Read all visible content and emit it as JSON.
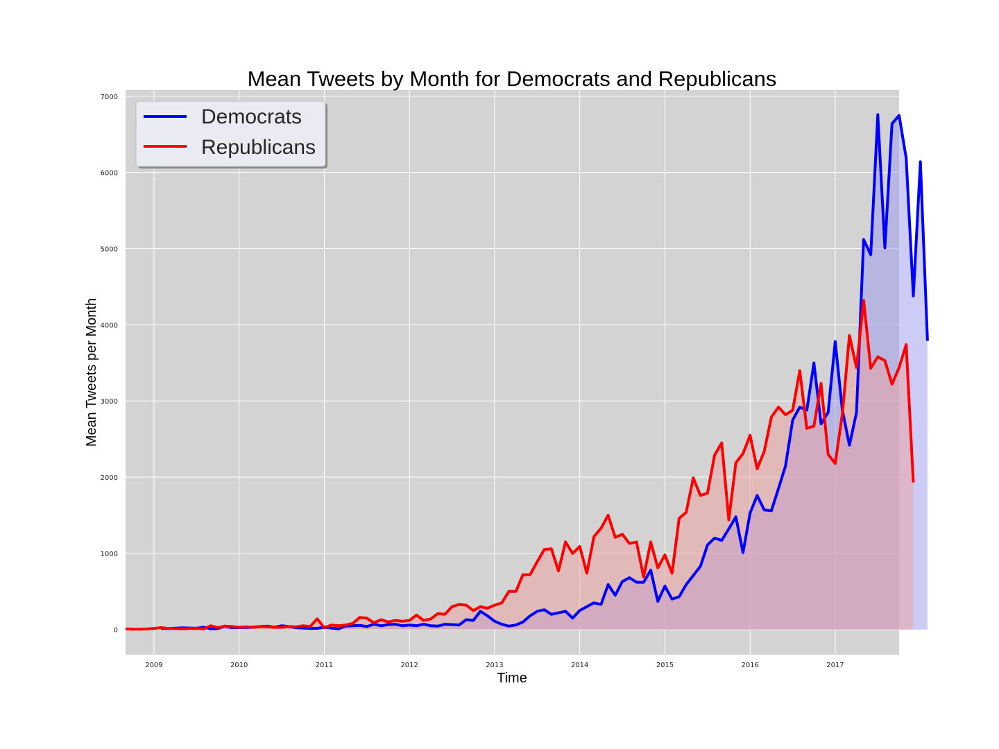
{
  "chart_data": {
    "type": "line",
    "title": "Mean Tweets by Month for Democrats and Republicans",
    "xlabel": "Time",
    "ylabel": "Mean Tweets per Month",
    "xlim": [
      "2008-09",
      "2017-10"
    ],
    "ylim": [
      -330,
      7080
    ],
    "x_ticks": [
      "2009",
      "2010",
      "2011",
      "2012",
      "2013",
      "2014",
      "2015",
      "2016",
      "2017"
    ],
    "y_ticks": [
      0,
      1000,
      2000,
      3000,
      4000,
      5000,
      6000,
      7000
    ],
    "grid": true,
    "legend_placement": "upper-left",
    "background": "#d3d3d3",
    "series": [
      {
        "name": "Democrats",
        "color": "#0000ff",
        "fill_color": "#9999ee",
        "x_start": "2009-02",
        "values": [
          15,
          12,
          18,
          22,
          20,
          17,
          30,
          10,
          12,
          45,
          25,
          28,
          28,
          32,
          40,
          45,
          30,
          50,
          40,
          25,
          20,
          15,
          16,
          30,
          20,
          10,
          45,
          50,
          55,
          40,
          70,
          50,
          65,
          70,
          50,
          60,
          50,
          70,
          50,
          45,
          70,
          65,
          60,
          130,
          120,
          240,
          180,
          110,
          70,
          45,
          60,
          100,
          180,
          240,
          260,
          200,
          220,
          240,
          150,
          250,
          300,
          350,
          330,
          590,
          450,
          630,
          680,
          620,
          620,
          780,
          370,
          570,
          400,
          430,
          590,
          710,
          830,
          1110,
          1200,
          1170,
          1320,
          1480,
          1010,
          1530,
          1760,
          1570,
          1560,
          1850,
          2150,
          2750,
          2920,
          2880,
          3500,
          2700,
          2850,
          3780,
          2880,
          2420,
          2850,
          5120,
          4920,
          6760,
          5010,
          6640,
          6750,
          6190,
          4380,
          6140,
          3790
        ]
      },
      {
        "name": "Republicans",
        "color": "#ff0000",
        "fill_color": "#f0a0a0",
        "x_start": "2008-09",
        "values": [
          10,
          5,
          5,
          8,
          15,
          25,
          15,
          12,
          10,
          12,
          15,
          8,
          50,
          25,
          45,
          40,
          30,
          35,
          30,
          40,
          35,
          30,
          30,
          40,
          35,
          50,
          40,
          140,
          25,
          60,
          50,
          60,
          80,
          160,
          150,
          90,
          130,
          100,
          120,
          110,
          120,
          190,
          120,
          140,
          210,
          200,
          300,
          330,
          320,
          250,
          300,
          280,
          320,
          350,
          500,
          500,
          720,
          720,
          890,
          1050,
          1060,
          770,
          1150,
          1000,
          1090,
          740,
          1220,
          1330,
          1500,
          1210,
          1250,
          1130,
          1150,
          690,
          1150,
          810,
          980,
          740,
          1460,
          1540,
          1990,
          1760,
          1790,
          2290,
          2450,
          1440,
          2190,
          2310,
          2550,
          2110,
          2340,
          2790,
          2920,
          2820,
          2880,
          3400,
          2640,
          2670,
          3230,
          2300,
          2180,
          2830,
          3860,
          3440,
          4320,
          3430,
          3580,
          3530,
          3220,
          3440,
          3740,
          1930
        ]
      }
    ]
  }
}
